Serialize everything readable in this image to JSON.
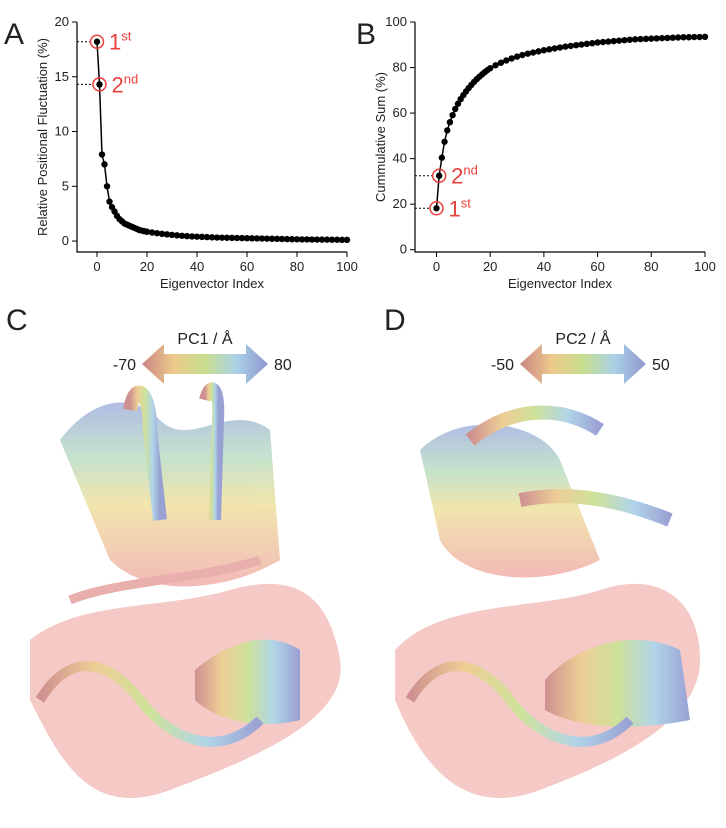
{
  "chart_data": [
    {
      "type": "line",
      "panel_label": "A",
      "x_label": "Eigenvector Index",
      "y_label": "Relative Positional Fluctuation (%)",
      "x": [
        0,
        1,
        2,
        3,
        4,
        5,
        6,
        7,
        8,
        9,
        10,
        11,
        12,
        13,
        14,
        15,
        16,
        17,
        18,
        19,
        20,
        22,
        24,
        26,
        28,
        30,
        32,
        34,
        36,
        38,
        40,
        42,
        44,
        46,
        48,
        50,
        52,
        54,
        56,
        58,
        60,
        62,
        64,
        66,
        68,
        70,
        72,
        74,
        76,
        78,
        80,
        82,
        84,
        86,
        88,
        90,
        92,
        94,
        96,
        98,
        100
      ],
      "values": [
        18.2,
        14.3,
        7.9,
        7.0,
        5.0,
        3.6,
        3.1,
        2.7,
        2.3,
        2.0,
        1.8,
        1.6,
        1.5,
        1.4,
        1.3,
        1.2,
        1.1,
        1.0,
        0.95,
        0.9,
        0.85,
        0.78,
        0.72,
        0.66,
        0.61,
        0.56,
        0.52,
        0.48,
        0.45,
        0.42,
        0.4,
        0.38,
        0.36,
        0.34,
        0.32,
        0.31,
        0.3,
        0.29,
        0.28,
        0.27,
        0.26,
        0.25,
        0.24,
        0.23,
        0.22,
        0.21,
        0.2,
        0.19,
        0.18,
        0.17,
        0.16,
        0.15,
        0.15,
        0.14,
        0.14,
        0.13,
        0.13,
        0.12,
        0.12,
        0.11,
        0.11
      ],
      "color": "#000000",
      "annotation_color": "#e8413c",
      "annotations": [
        {
          "text": "1",
          "sup": "st"
        },
        {
          "text": "2",
          "sup": "nd"
        }
      ],
      "xlim": [
        -8,
        100
      ],
      "ylim": [
        -1,
        20
      ],
      "xticks": [
        0,
        20,
        40,
        60,
        80,
        100
      ],
      "yticks": [
        0,
        5,
        10,
        15,
        20
      ]
    },
    {
      "type": "line",
      "panel_label": "B",
      "x_label": "Eigenvector Index",
      "y_label": "Cummulative Sum (%)",
      "x": [
        0,
        1,
        2,
        3,
        4,
        5,
        6,
        7,
        8,
        9,
        10,
        11,
        12,
        13,
        14,
        15,
        16,
        17,
        18,
        19,
        20,
        22,
        24,
        26,
        28,
        30,
        32,
        34,
        36,
        38,
        40,
        42,
        44,
        46,
        48,
        50,
        52,
        54,
        56,
        58,
        60,
        62,
        64,
        66,
        68,
        70,
        72,
        74,
        76,
        78,
        80,
        82,
        84,
        86,
        88,
        90,
        92,
        94,
        96,
        98,
        100
      ],
      "values": [
        18.2,
        32.5,
        40.4,
        47.4,
        52.4,
        56.0,
        59.1,
        61.8,
        64.1,
        66.1,
        67.9,
        69.5,
        71.0,
        72.4,
        73.7,
        74.9,
        76.0,
        77.0,
        78.0,
        78.9,
        79.7,
        81.0,
        82.1,
        83.1,
        84.0,
        84.8,
        85.5,
        86.1,
        86.6,
        87.1,
        87.6,
        88.0,
        88.4,
        88.8,
        89.2,
        89.5,
        89.8,
        90.1,
        90.4,
        90.7,
        91.0,
        91.2,
        91.4,
        91.6,
        91.8,
        92.0,
        92.2,
        92.4,
        92.5,
        92.6,
        92.7,
        92.8,
        92.9,
        93.0,
        93.1,
        93.2,
        93.3,
        93.3,
        93.4,
        93.4,
        93.5
      ],
      "color": "#000000",
      "annotation_color": "#e8413c",
      "annotations": [
        {
          "text": "1",
          "sup": "st"
        },
        {
          "text": "2",
          "sup": "nd"
        }
      ],
      "xlim": [
        -8,
        100
      ],
      "ylim": [
        -1,
        100
      ],
      "xticks": [
        0,
        20,
        40,
        60,
        80,
        100
      ],
      "yticks": [
        0,
        20,
        40,
        60,
        80,
        100
      ]
    }
  ],
  "panels": [
    {
      "label": "C",
      "colorbar": {
        "title": "PC1 / Å",
        "min": -70,
        "max": 80
      }
    },
    {
      "label": "D",
      "colorbar": {
        "title": "PC2 / Å",
        "min": -50,
        "max": 50
      }
    }
  ]
}
